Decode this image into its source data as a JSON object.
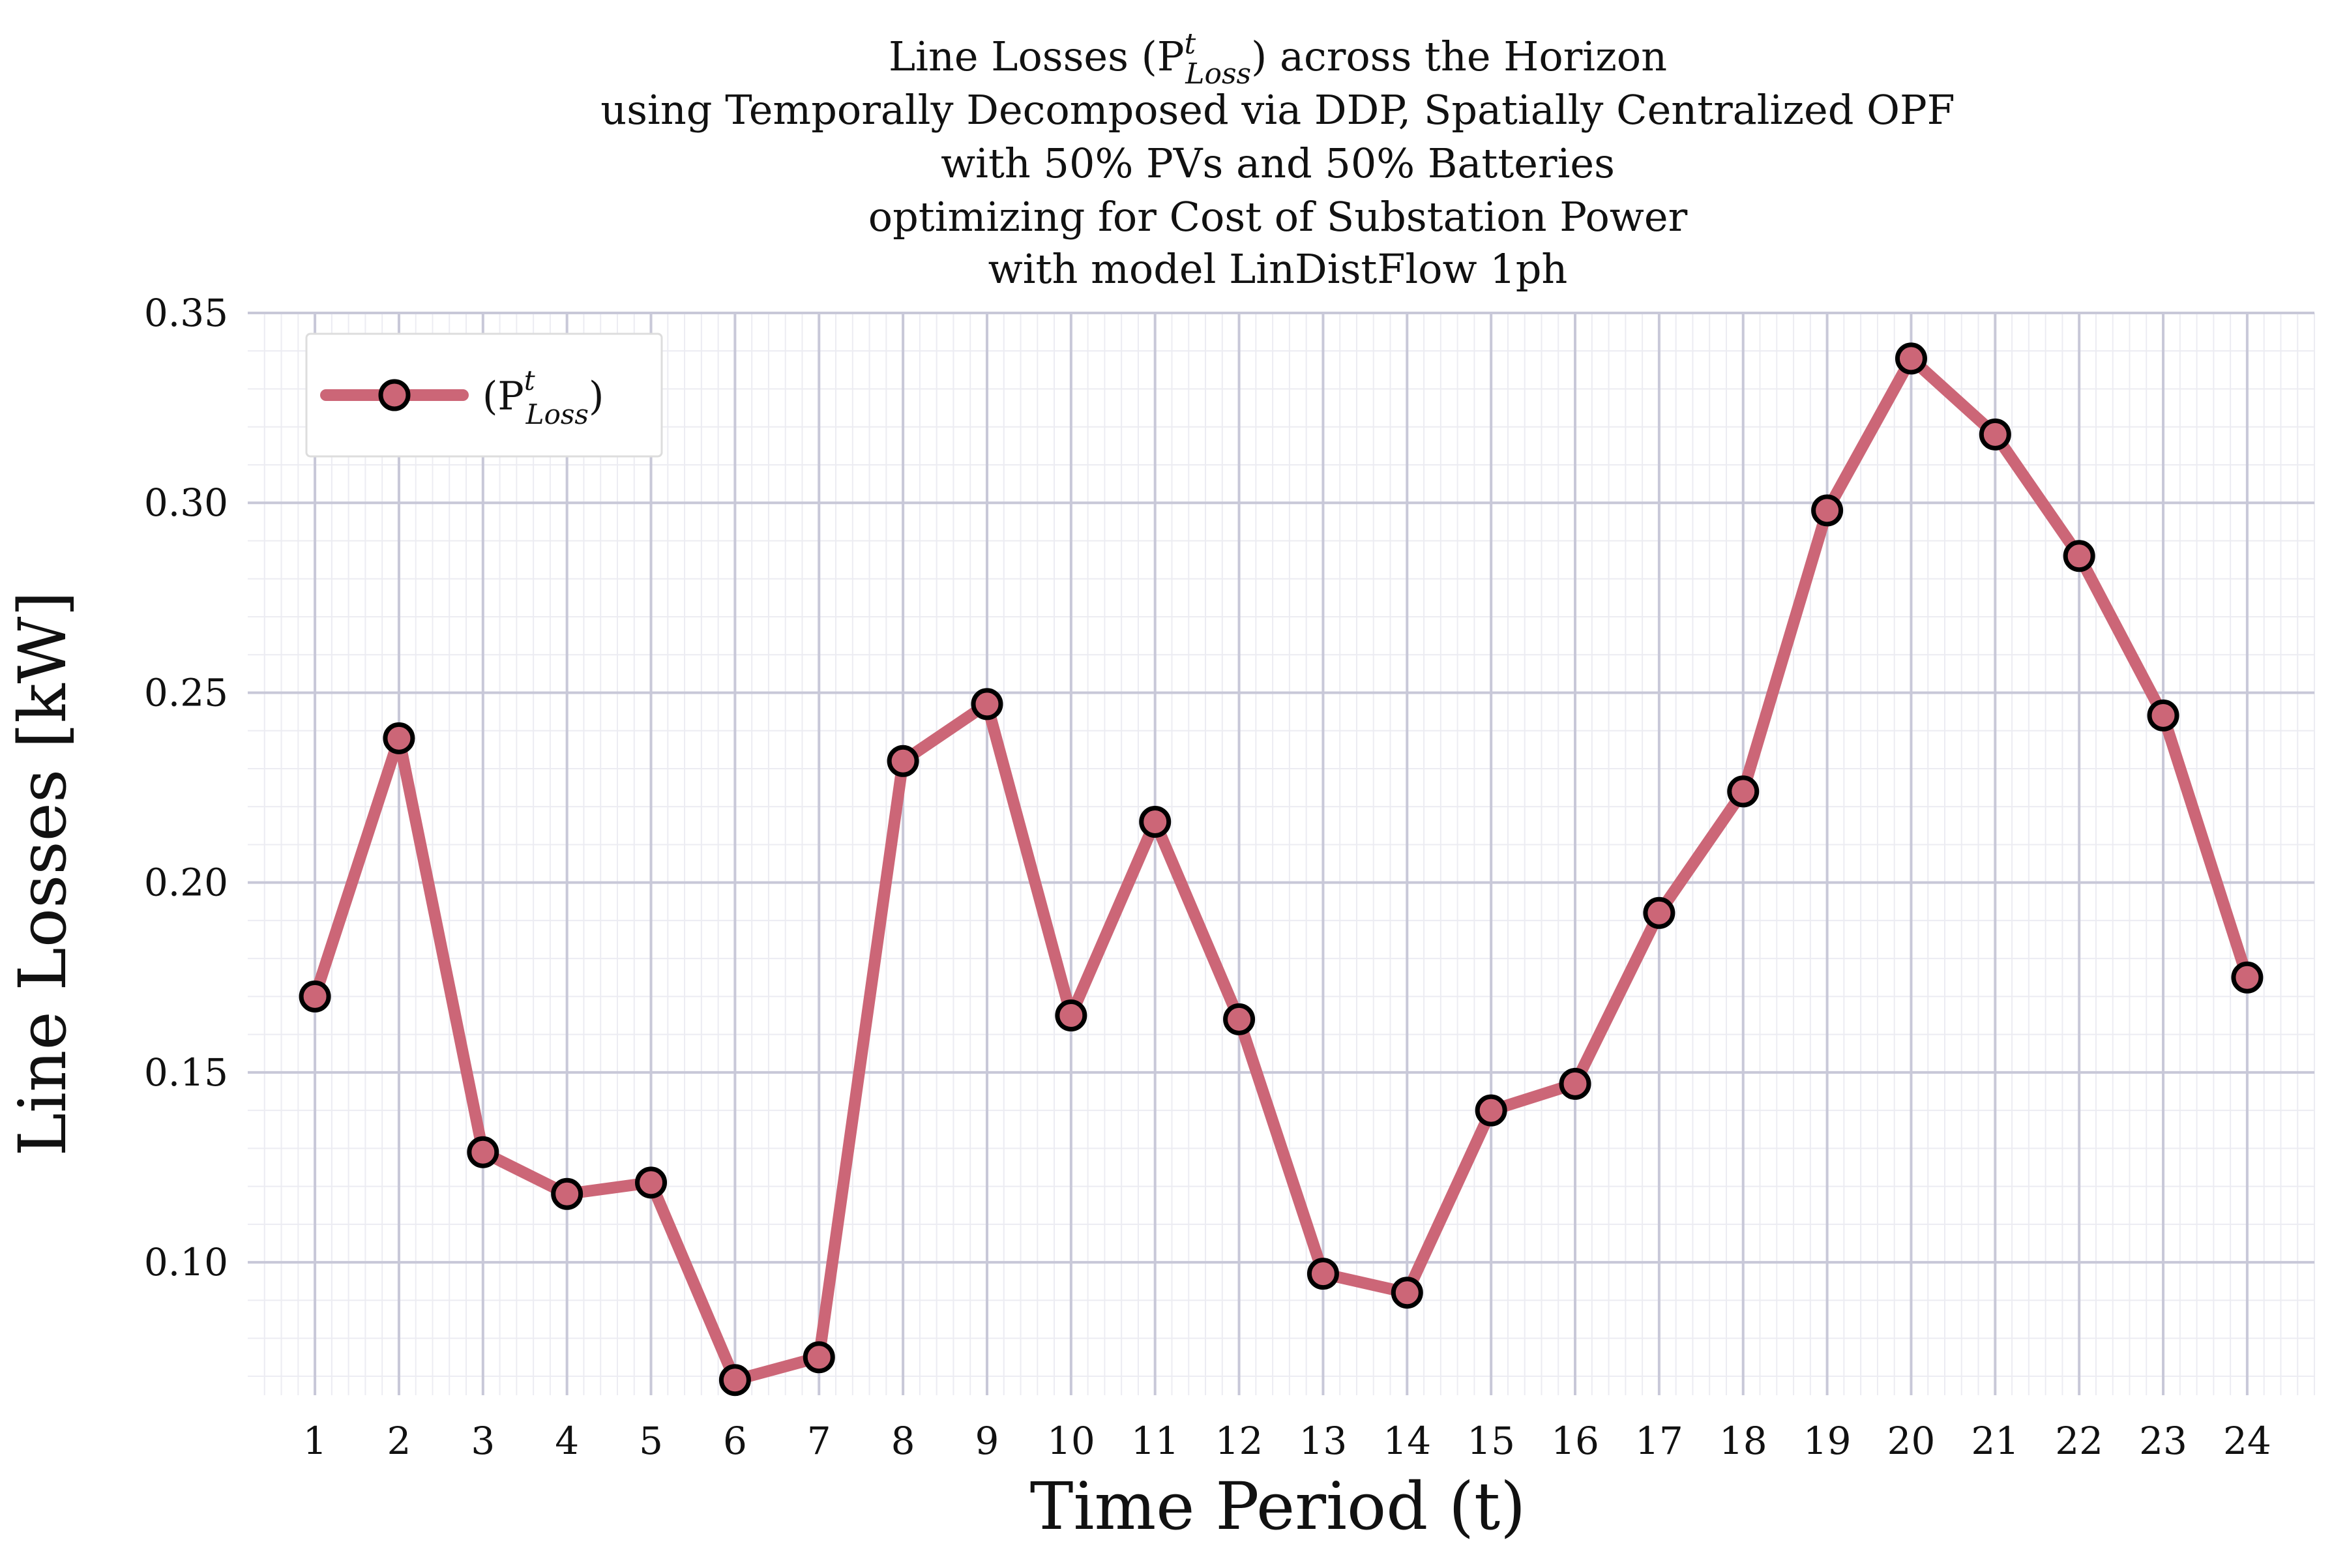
{
  "chart_data": {
    "type": "line",
    "title_lines": [
      "Line Losses (P",
      "using Temporally Decomposed via DDP, Spatially Centralized OPF",
      "with 50% PVs and 50% Batteries",
      "optimizing for Cost of Substation Power",
      "with model LinDistFlow 1ph"
    ],
    "title_math": {
      "symbol": "P",
      "sup": "t",
      "sub": "Loss",
      "after": ") across the Horizon"
    },
    "xlabel": "Time Period (t)",
    "ylabel": "Line Losses [kW]",
    "x": [
      1,
      2,
      3,
      4,
      5,
      6,
      7,
      8,
      9,
      10,
      11,
      12,
      13,
      14,
      15,
      16,
      17,
      18,
      19,
      20,
      21,
      22,
      23,
      24
    ],
    "series": [
      {
        "name": "(P_Loss^t)",
        "values": [
          0.17,
          0.238,
          0.129,
          0.118,
          0.121,
          0.069,
          0.075,
          0.232,
          0.247,
          0.165,
          0.216,
          0.164,
          0.097,
          0.092,
          0.14,
          0.147,
          0.192,
          0.224,
          0.298,
          0.338,
          0.318,
          0.286,
          0.244,
          0.175
        ]
      }
    ],
    "xlim": [
      0.2,
      24.8
    ],
    "ylim": [
      0.065,
      0.35
    ],
    "yticks": [
      0.1,
      0.15,
      0.2,
      0.25,
      0.3,
      0.35
    ],
    "ytick_labels": [
      "0.10",
      "0.15",
      "0.20",
      "0.25",
      "0.30",
      "0.35"
    ],
    "xtick_labels": [
      "1",
      "2",
      "3",
      "4",
      "5",
      "6",
      "7",
      "8",
      "9",
      "10",
      "11",
      "12",
      "13",
      "14",
      "15",
      "16",
      "17",
      "18",
      "19",
      "20",
      "21",
      "22",
      "23",
      "24"
    ],
    "grid": true,
    "legend": {
      "placement": "top-left",
      "entry_open": "(P",
      "entry_sup": "t",
      "entry_sub": "Loss",
      "entry_close": ")"
    },
    "colors": {
      "line": "#cc6677",
      "marker_edge": "#000000",
      "major_grid": "#c8c8d8",
      "minor_grid": "#ececf2"
    }
  }
}
